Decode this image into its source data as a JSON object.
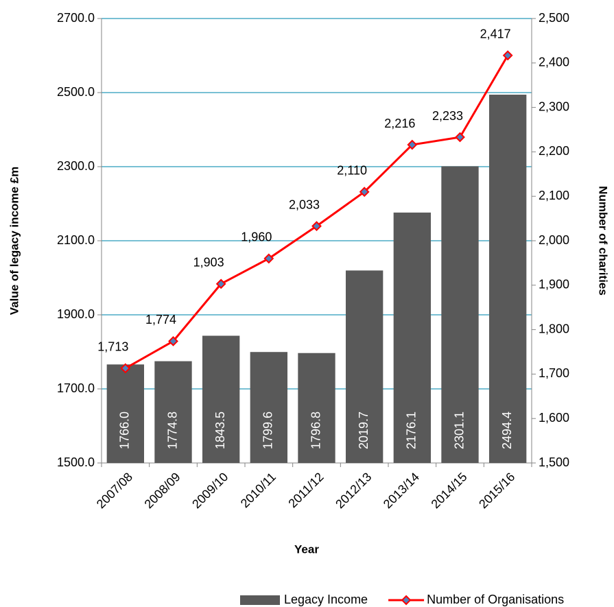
{
  "chart_data": {
    "type": "combo",
    "xlabel": "Year",
    "ylabel": "Value of legacy income £m",
    "y2label": "Number of charities",
    "categories": [
      "2007/08",
      "2008/09",
      "2009/10",
      "2010/11",
      "2011/12",
      "2012/13",
      "2013/14",
      "2014/15",
      "2015/16"
    ],
    "series": [
      {
        "name": "Legacy Income",
        "type": "bar",
        "color": "#595959",
        "values": [
          1766.0,
          1774.8,
          1843.5,
          1799.6,
          1796.8,
          2019.7,
          2176.1,
          2301.1,
          2494.4
        ],
        "value_labels": [
          "1766.0",
          "1774.8",
          "1843.5",
          "1799.6",
          "1796.8",
          "2019.7",
          "2176.1",
          "2301.1",
          "2494.4"
        ]
      },
      {
        "name": "Number of Organisations",
        "type": "line",
        "axis": "y2",
        "color": "#ff0000",
        "marker_fill": "#4f81bd",
        "values": [
          1713,
          1774,
          1903,
          1960,
          2033,
          2110,
          2216,
          2233,
          2417
        ],
        "value_labels": [
          "1,713",
          "1,774",
          "1,903",
          "1,960",
          "2,033",
          "2,110",
          "2,216",
          "2,233",
          "2,417"
        ]
      }
    ],
    "ylim": [
      1500,
      2700
    ],
    "yticks": [
      {
        "value": 1500,
        "label": "1500.0"
      },
      {
        "value": 1700,
        "label": "1700.0"
      },
      {
        "value": 1900,
        "label": "1900.0"
      },
      {
        "value": 2100,
        "label": "2100.0"
      },
      {
        "value": 2300,
        "label": "2300.0"
      },
      {
        "value": 2500,
        "label": "2500.0"
      },
      {
        "value": 2700,
        "label": "2700.0"
      }
    ],
    "y2lim": [
      1500,
      2500
    ],
    "y2ticks": [
      {
        "value": 1500,
        "label": "1,500"
      },
      {
        "value": 1600,
        "label": "1,600"
      },
      {
        "value": 1700,
        "label": "1,700"
      },
      {
        "value": 1800,
        "label": "1,800"
      },
      {
        "value": 1900,
        "label": "1,900"
      },
      {
        "value": 2000,
        "label": "2,000"
      },
      {
        "value": 2100,
        "label": "2,100"
      },
      {
        "value": 2200,
        "label": "2,200"
      },
      {
        "value": 2300,
        "label": "2,300"
      },
      {
        "value": 2400,
        "label": "2,400"
      },
      {
        "value": 2500,
        "label": "2,500"
      }
    ],
    "grid": true,
    "grid_color": "#4bacc6",
    "legend": "bottom"
  }
}
